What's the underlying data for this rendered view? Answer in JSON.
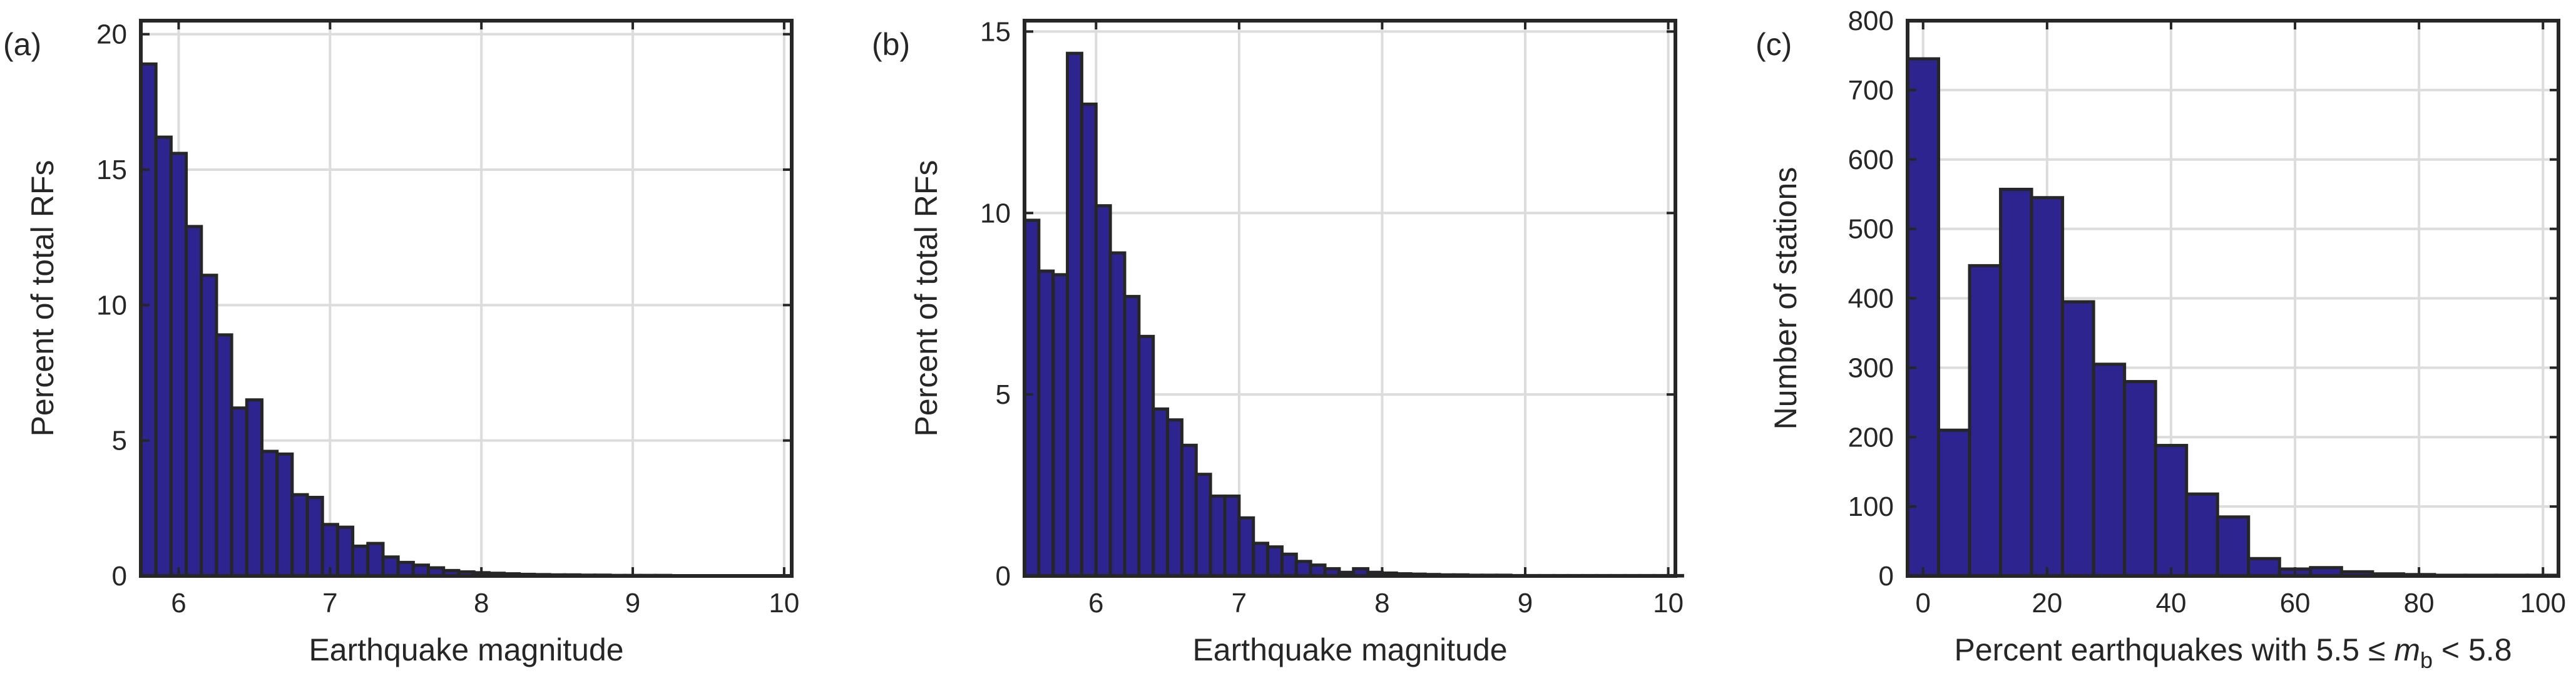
{
  "colors": {
    "bar_fill": "#2e2490",
    "bar_edge": "#262626",
    "grid": "#dcdcdc",
    "axis": "#262626"
  },
  "chart_data": [
    {
      "type": "bar",
      "panel_label": "(a)",
      "xlabel": "Earthquake magnitude",
      "ylabel": "Percent of total RFs",
      "xlim": [
        5.75,
        10.05
      ],
      "ylim": [
        0,
        20.5
      ],
      "xticks": [
        6,
        7,
        8,
        9,
        10
      ],
      "yticks": [
        0,
        5,
        10,
        15,
        20
      ],
      "grid": true,
      "bin_width": 0.1,
      "bin_start": 5.75,
      "values": [
        18.9,
        16.2,
        15.6,
        12.9,
        11.1,
        8.9,
        6.2,
        6.5,
        4.6,
        4.5,
        3.0,
        2.9,
        1.9,
        1.8,
        1.1,
        1.2,
        0.7,
        0.5,
        0.4,
        0.3,
        0.2,
        0.15,
        0.12,
        0.1,
        0.08,
        0.06,
        0.05,
        0.04,
        0.04,
        0.03,
        0.03,
        0.02,
        0.02,
        0.02,
        0.02,
        0.01,
        0.01,
        0.01,
        0.01,
        0.01,
        0.01,
        0.01,
        0.01
      ]
    },
    {
      "type": "bar",
      "panel_label": "(b)",
      "xlabel": "Earthquake magnitude",
      "ylabel": "Percent of total RFs",
      "xlim": [
        5.5,
        10.05
      ],
      "ylim": [
        0,
        15.3
      ],
      "xticks": [
        6,
        7,
        8,
        9,
        10
      ],
      "yticks": [
        0,
        5,
        10,
        15
      ],
      "grid": true,
      "bin_width": 0.1,
      "bin_start": 5.5,
      "values": [
        9.8,
        8.4,
        8.3,
        14.4,
        13.0,
        10.2,
        8.9,
        7.7,
        6.6,
        4.6,
        4.3,
        3.6,
        2.8,
        2.2,
        2.2,
        1.6,
        0.9,
        0.8,
        0.6,
        0.4,
        0.3,
        0.2,
        0.1,
        0.2,
        0.1,
        0.08,
        0.06,
        0.05,
        0.04,
        0.03,
        0.03,
        0.02,
        0.02,
        0.02,
        0.01,
        0.01,
        0.01,
        0.01,
        0.01,
        0.01,
        0.01,
        0.01,
        0.01,
        0.01,
        0.01,
        0.01
      ]
    },
    {
      "type": "bar",
      "panel_label": "(c)",
      "xlabel_parts": [
        "Percent earthquakes with 5.5 ",
        "≤",
        " ",
        "m",
        "b",
        " < 5.8"
      ],
      "ylabel": "Number of stations",
      "xlim": [
        -2.5,
        102.5
      ],
      "ylim": [
        0,
        800
      ],
      "xticks": [
        0,
        20,
        40,
        60,
        80,
        100
      ],
      "yticks": [
        0,
        100,
        200,
        300,
        400,
        500,
        600,
        700,
        800
      ],
      "grid": true,
      "bin_width": 5,
      "bin_start": -2.5,
      "values": [
        745,
        210,
        447,
        557,
        545,
        395,
        305,
        280,
        188,
        118,
        85,
        25,
        10,
        12,
        6,
        3,
        2,
        1,
        1,
        1,
        1
      ]
    }
  ]
}
